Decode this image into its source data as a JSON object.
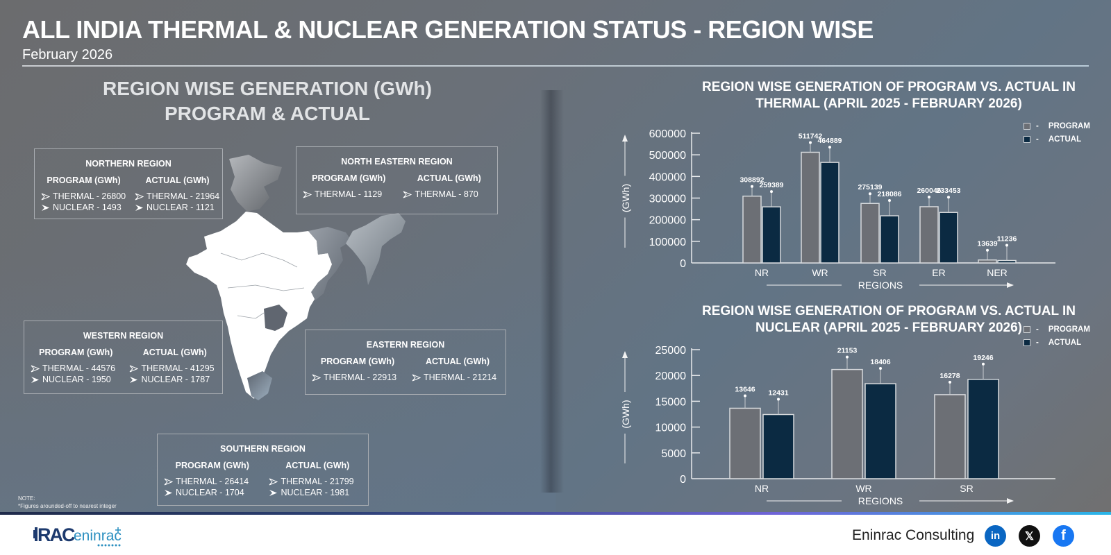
{
  "header": {
    "title": "ALL INDIA THERMAL & NUCLEAR GENERATION STATUS - REGION WISE",
    "subtitle": "February 2026"
  },
  "left_panel": {
    "title_line1": "REGION WISE GENERATION (GWh)",
    "title_line2": "PROGRAM & ACTUAL",
    "program_header": "PROGRAM (GWh)",
    "actual_header": "ACTUAL (GWh)",
    "regions": {
      "northern": {
        "name": "NORTHERN REGION",
        "program": [
          "THERMAL - 26800",
          "NUCLEAR - 1493"
        ],
        "actual": [
          "THERMAL - 21964",
          "NUCLEAR - 1121"
        ]
      },
      "north_eastern": {
        "name": "NORTH EASTERN REGION",
        "program": [
          "THERMAL - 1129"
        ],
        "actual": [
          "THERMAL - 870"
        ]
      },
      "western": {
        "name": "WESTERN REGION",
        "program": [
          "THERMAL - 44576",
          "NUCLEAR - 1950"
        ],
        "actual": [
          "THERMAL - 41295",
          "NUCLEAR - 1787"
        ]
      },
      "eastern": {
        "name": "EASTERN REGION",
        "program": [
          "THERMAL - 22913"
        ],
        "actual": [
          "THERMAL - 21214"
        ]
      },
      "southern": {
        "name": "SOUTHERN REGION",
        "program": [
          "THERMAL - 26414",
          "NUCLEAR - 1704"
        ],
        "actual": [
          "THERMAL - 21799",
          "NUCLEAR - 1981"
        ]
      }
    },
    "note_label": "NOTE:",
    "note_text": "*Figures arounded-off to nearest integer",
    "icons": {
      "thermal": "outline-chevron-icon",
      "nuclear": "filled-chevron-icon"
    }
  },
  "colors": {
    "program": "#6c6f75",
    "actual": "#0b2a42",
    "bar_border": "#d6d9dc",
    "linkedin": "#0a66c2",
    "x": "#111111",
    "facebook": "#1877f2"
  },
  "chart_data": [
    {
      "type": "bar",
      "title": "REGION WISE GENERATION OF PROGRAM VS. ACTUAL IN THERMAL (APRIL 2025 - FEBRUARY 2026)",
      "title_line1": "REGION WISE GENERATION OF PROGRAM VS. ACTUAL IN",
      "title_line2": "THERMAL (APRIL 2025 - FEBRUARY 2026)",
      "categories": [
        "NR",
        "WR",
        "SR",
        "ER",
        "NER"
      ],
      "series": [
        {
          "name": "PROGRAM",
          "values": [
            308892,
            511742,
            275139,
            260046,
            13639
          ]
        },
        {
          "name": "ACTUAL",
          "values": [
            259389,
            464889,
            218086,
            233453,
            11236
          ]
        }
      ],
      "xlabel": "REGIONS",
      "ylabel": "(GWh)",
      "ylim": [
        0,
        600000
      ],
      "yticks": [
        0,
        100000,
        200000,
        300000,
        400000,
        500000,
        600000
      ],
      "grid": false,
      "legend_position": "top-right",
      "legend": [
        "PROGRAM",
        "ACTUAL"
      ]
    },
    {
      "type": "bar",
      "title": "REGION WISE GENERATION OF PROGRAM VS. ACTUAL IN NUCLEAR (APRIL 2025 - FEBRUARY 2026)",
      "title_line1": "REGION WISE GENERATION OF PROGRAM VS. ACTUAL IN",
      "title_line2": "NUCLEAR (APRIL 2025 - FEBRUARY 2026)",
      "categories": [
        "NR",
        "WR",
        "SR"
      ],
      "series": [
        {
          "name": "PROGRAM",
          "values": [
            13646,
            21153,
            16278
          ]
        },
        {
          "name": "ACTUAL",
          "values": [
            12431,
            18406,
            19246
          ]
        }
      ],
      "xlabel": "REGIONS",
      "ylabel": "(GWh)",
      "ylim": [
        0,
        25000
      ],
      "yticks": [
        0,
        5000,
        10000,
        15000,
        20000,
        25000
      ],
      "grid": false,
      "legend_position": "top-right",
      "legend": [
        "PROGRAM",
        "ACTUAL"
      ]
    }
  ],
  "legend": {
    "program": "PROGRAM",
    "actual": "ACTUAL",
    "dash": "-"
  },
  "footer": {
    "brand": "Eninrac Consulting",
    "logo_text_a": "RAC",
    "logo_text_b": "eninrac",
    "social": {
      "linkedin": "in",
      "x": "𝕏",
      "facebook": "f"
    }
  }
}
